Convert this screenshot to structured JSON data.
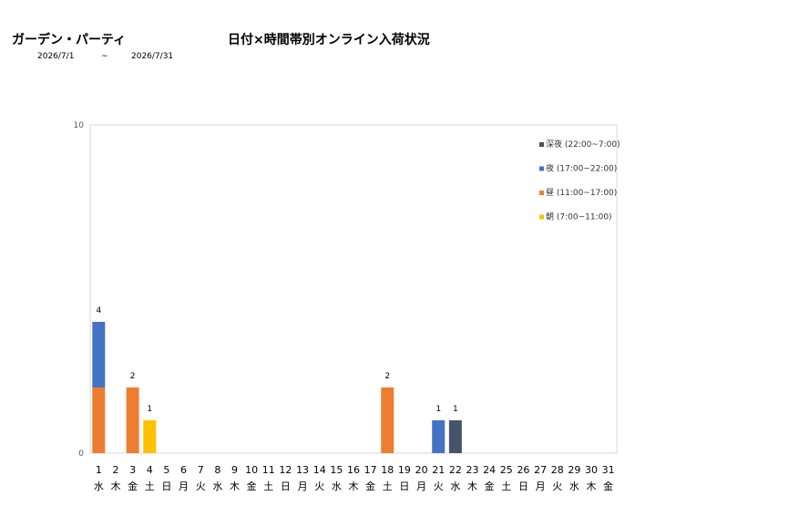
{
  "header": {
    "store_name": "ガーデン・パーティ",
    "title": "日付×時間帯別オンライン入荷状況",
    "period_start": "2026/7/1",
    "period_sep": "~",
    "period_end": "2026/7/31"
  },
  "chart_data": {
    "type": "bar",
    "stacked": true,
    "title": "日付×時間帯別オンライン入荷状況",
    "categories": [
      "1",
      "2",
      "3",
      "4",
      "5",
      "6",
      "7",
      "8",
      "9",
      "10",
      "11",
      "12",
      "13",
      "14",
      "15",
      "16",
      "17",
      "18",
      "19",
      "20",
      "21",
      "22",
      "23",
      "24",
      "25",
      "26",
      "27",
      "28",
      "29",
      "30",
      "31"
    ],
    "weekdays": [
      "水",
      "木",
      "金",
      "土",
      "日",
      "月",
      "火",
      "水",
      "木",
      "金",
      "土",
      "日",
      "月",
      "火",
      "水",
      "木",
      "金",
      "土",
      "日",
      "月",
      "火",
      "水",
      "木",
      "金",
      "土",
      "日",
      "月",
      "火",
      "水",
      "木",
      "金"
    ],
    "ylim": [
      0,
      10
    ],
    "yticks": [
      0,
      10
    ],
    "grid": false,
    "legend_position": "top-right",
    "series": [
      {
        "name": "朝 (7:00~11:00)",
        "color": "#FFC000",
        "values": [
          0,
          0,
          0,
          1,
          0,
          0,
          0,
          0,
          0,
          0,
          0,
          0,
          0,
          0,
          0,
          0,
          0,
          0,
          0,
          0,
          0,
          0,
          0,
          0,
          0,
          0,
          0,
          0,
          0,
          0,
          0
        ]
      },
      {
        "name": "昼 (11:00~17:00)",
        "color": "#ED7D31",
        "values": [
          2,
          0,
          2,
          0,
          0,
          0,
          0,
          0,
          0,
          0,
          0,
          0,
          0,
          0,
          0,
          0,
          0,
          2,
          0,
          0,
          0,
          0,
          0,
          0,
          0,
          0,
          0,
          0,
          0,
          0,
          0
        ]
      },
      {
        "name": "夜 (17:00~22:00)",
        "color": "#4472C4",
        "values": [
          2,
          0,
          0,
          0,
          0,
          0,
          0,
          0,
          0,
          0,
          0,
          0,
          0,
          0,
          0,
          0,
          0,
          0,
          0,
          0,
          1,
          0,
          0,
          0,
          0,
          0,
          0,
          0,
          0,
          0,
          0
        ]
      },
      {
        "name": "深夜 (22:00~7:00)",
        "color": "#44546A",
        "values": [
          0,
          0,
          0,
          0,
          0,
          0,
          0,
          0,
          0,
          0,
          0,
          0,
          0,
          0,
          0,
          0,
          0,
          0,
          0,
          0,
          0,
          1,
          0,
          0,
          0,
          0,
          0,
          0,
          0,
          0,
          0
        ]
      }
    ],
    "totals": [
      4,
      0,
      2,
      1,
      0,
      0,
      0,
      0,
      0,
      0,
      0,
      0,
      0,
      0,
      0,
      0,
      0,
      2,
      0,
      0,
      1,
      1,
      0,
      0,
      0,
      0,
      0,
      0,
      0,
      0,
      0
    ]
  }
}
